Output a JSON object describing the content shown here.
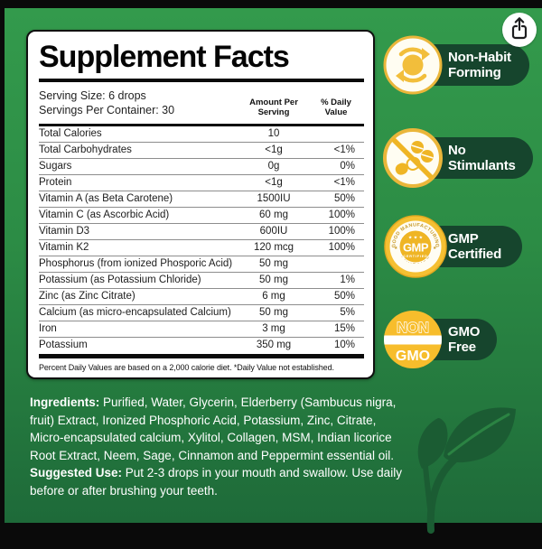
{
  "panel": {
    "title": "Supplement Facts",
    "serving_size": "Serving Size: 6 drops",
    "servings_per_container": "Servings Per Container: 30",
    "col_amount": "Amount Per\nServing",
    "col_daily": "% Daily\nValue",
    "rows": [
      {
        "name": "Total Calories",
        "amount": "10",
        "dv": ""
      },
      {
        "name": "Total Carbohydrates",
        "amount": "<1g",
        "dv": "<1%"
      },
      {
        "name": "Sugars",
        "amount": "0g",
        "dv": "0%"
      },
      {
        "name": "Protein",
        "amount": "<1g",
        "dv": "<1%"
      },
      {
        "name": "Vitamin A (as Beta Carotene)",
        "amount": "1500IU",
        "dv": "50%"
      },
      {
        "name": "Vitamin C (as Ascorbic Acid)",
        "amount": "60 mg",
        "dv": "100%"
      },
      {
        "name": "Vitamin D3",
        "amount": "600IU",
        "dv": "100%"
      },
      {
        "name": "Vitamin K2",
        "amount": "120 mcg",
        "dv": "100%"
      },
      {
        "name": "Phosphorus (from ionized Phosporic Acid)",
        "amount": "50 mg",
        "dv": ""
      },
      {
        "name": "Potassium (as Potassium Chloride)",
        "amount": "50 mg",
        "dv": "1%"
      },
      {
        "name": "Zinc (as Zinc Citrate)",
        "amount": "6 mg",
        "dv": "50%"
      },
      {
        "name": "Calcium (as micro-encapsulated Calcium)",
        "amount": "50 mg",
        "dv": "5%"
      },
      {
        "name": "Iron",
        "amount": "3 mg",
        "dv": "15%"
      },
      {
        "name": "Potassium",
        "amount": "350 mg",
        "dv": "10%"
      }
    ],
    "footnote": "Percent Daily Values are based on a 2,000 calorie diet. *Daily Value not established."
  },
  "badges": [
    {
      "line1": "Non-Habit",
      "line2": "Forming",
      "icon": "refresh-arrows-icon"
    },
    {
      "line1": "No",
      "line2": "Stimulants",
      "icon": "no-stimulants-icon"
    },
    {
      "line1": "GMP",
      "line2": "Certified",
      "icon": "gmp-seal-icon",
      "seal_top": "GOOD MANUFACTURING",
      "seal_stars": "★ ★ ★",
      "seal_center": "GMP",
      "seal_sub": "CERTIFIED",
      "seal_bottom": "PRACTICE"
    },
    {
      "line1": "GMO",
      "line2": "Free",
      "icon": "non-gmo-icon",
      "circle_top": "NON",
      "circle_bottom": "GMO"
    }
  ],
  "ingredients": {
    "label": "Ingredients:",
    "text": " Purified, Water, Glycerin, Elderberry (Sambucus nigra, fruit) Extract, Ironized Phosphoric Acid, Potassium, Zinc, Citrate, Micro-encapsulated calcium, Xylitol, Collagen, MSM, Indian licorice Root Extract, Neem, Sage, Cinnamon and Peppermint essential oil."
  },
  "suggested_use": {
    "label": "Suggested Use:",
    "text": " Put 2-3 drops in your mouth and swallow. Use daily before or after brushing your teeth."
  },
  "colors": {
    "background_green_top": "#339a4c",
    "background_green_bottom": "#1e6a39",
    "badge_pill_green": "#16452d",
    "badge_gold": "#f0b82a",
    "leaf_green": "#1b5c33"
  }
}
